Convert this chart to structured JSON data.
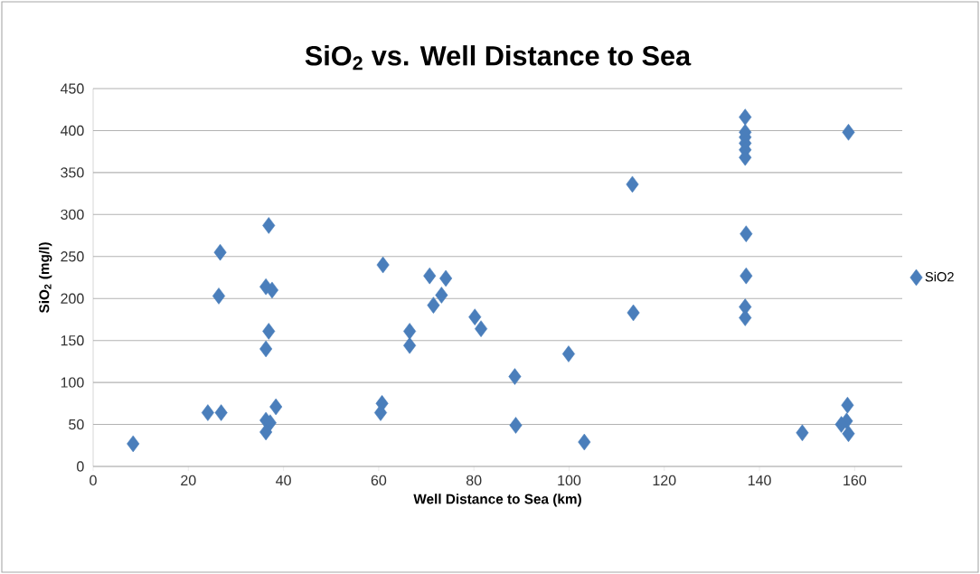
{
  "chart_data": {
    "type": "scatter",
    "title": "SiO$_{2}$ vs. Well Distance to Sea",
    "xlabel": "Well Distance to Sea (km)",
    "ylabel": "SiO$_{2}$ (mg/l)",
    "xlim": [
      0,
      170
    ],
    "xticks": [
      0,
      20,
      40,
      60,
      80,
      100,
      120,
      140,
      160
    ],
    "ylim": [
      0,
      450
    ],
    "yticks": [
      0,
      50,
      100,
      150,
      200,
      250,
      300,
      350,
      400,
      450
    ],
    "grid": "y",
    "legend": "right",
    "marker": "diamond",
    "series": [
      {
        "name": "SiO2",
        "color": "#4a7ebb",
        "x": [
          8.4,
          24.1,
          26.9,
          26.7,
          26.4,
          36.9,
          36.3,
          37.6,
          36.9,
          36.3,
          38.4,
          36.3,
          37.2,
          36.3,
          60.9,
          60.7,
          60.4,
          66.5,
          66.5,
          70.7,
          74.1,
          73.2,
          71.5,
          80.2,
          81.5,
          88.6,
          88.8,
          99.9,
          103.2,
          113.3,
          113.5,
          137.0,
          137.0,
          137.0,
          137.0,
          137.0,
          137.0,
          137.2,
          137.2,
          137.0,
          137.0,
          158.7,
          149.0,
          158.5,
          158.3,
          157.2,
          158.7
        ],
        "values": [
          27,
          64,
          64,
          255,
          203,
          287,
          214,
          210,
          161,
          140,
          71,
          55,
          52,
          41,
          240,
          75,
          64,
          161,
          144,
          227,
          224,
          204,
          192,
          178,
          164,
          107,
          49,
          134,
          29,
          336,
          183,
          416,
          398,
          392,
          385,
          377,
          368,
          277,
          227,
          190,
          177,
          398,
          40,
          73,
          54,
          50,
          39
        ]
      }
    ]
  }
}
